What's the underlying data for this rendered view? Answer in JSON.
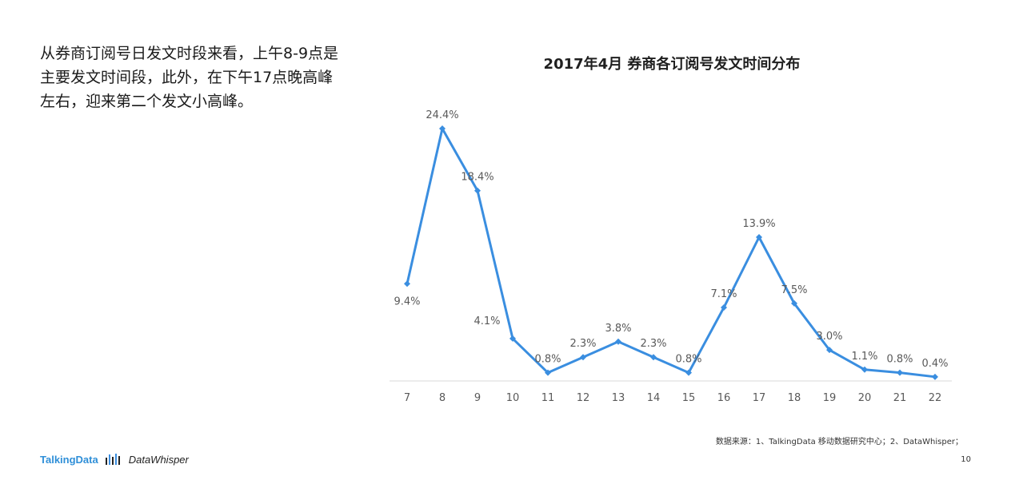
{
  "intro": {
    "lines": [
      "从券商订阅号日发文时段来看，上午8-9点是",
      "主要发文时间段，此外，在下午17点晚高峰",
      "左右，迎来第二个发文小高峰。"
    ]
  },
  "chart_data": {
    "type": "line",
    "title": "2017年4月 券商各订阅号发文时间分布",
    "xlabel": "",
    "ylabel": "",
    "categories": [
      "7",
      "8",
      "9",
      "10",
      "11",
      "12",
      "13",
      "14",
      "15",
      "16",
      "17",
      "18",
      "19",
      "20",
      "21",
      "22"
    ],
    "series": [
      {
        "values": [
          9.4,
          24.4,
          18.4,
          4.1,
          0.8,
          2.3,
          3.8,
          2.3,
          0.8,
          7.1,
          13.9,
          7.5,
          3.0,
          1.1,
          0.8,
          0.4
        ],
        "labels": [
          "9.4%",
          "24.4%",
          "18.4%",
          "4.1%",
          "0.8%",
          "2.3%",
          "3.8%",
          "2.3%",
          "0.8%",
          "7.1%",
          "13.9%",
          "7.5%",
          "3.0%",
          "1.1%",
          "0.8%",
          "0.4%"
        ],
        "label_position": [
          "below",
          "above",
          "above",
          "above-left",
          "above",
          "above",
          "above",
          "above",
          "above",
          "above",
          "above",
          "above",
          "above",
          "above",
          "above",
          "above"
        ]
      }
    ],
    "ylim": [
      0,
      25
    ],
    "grid": false,
    "legend": "none",
    "colors": {
      "line": "#3a8ee0",
      "axis": "#d9d9d9",
      "tick_label": "#595959",
      "data_label": "#595959"
    }
  },
  "footer": {
    "source": "数据来源：1、TalkingData 移动数据研究中心；2、DataWhisper；",
    "page_number": "10",
    "brand_left": "TalkingData",
    "brand_right": "DataWhisper"
  }
}
